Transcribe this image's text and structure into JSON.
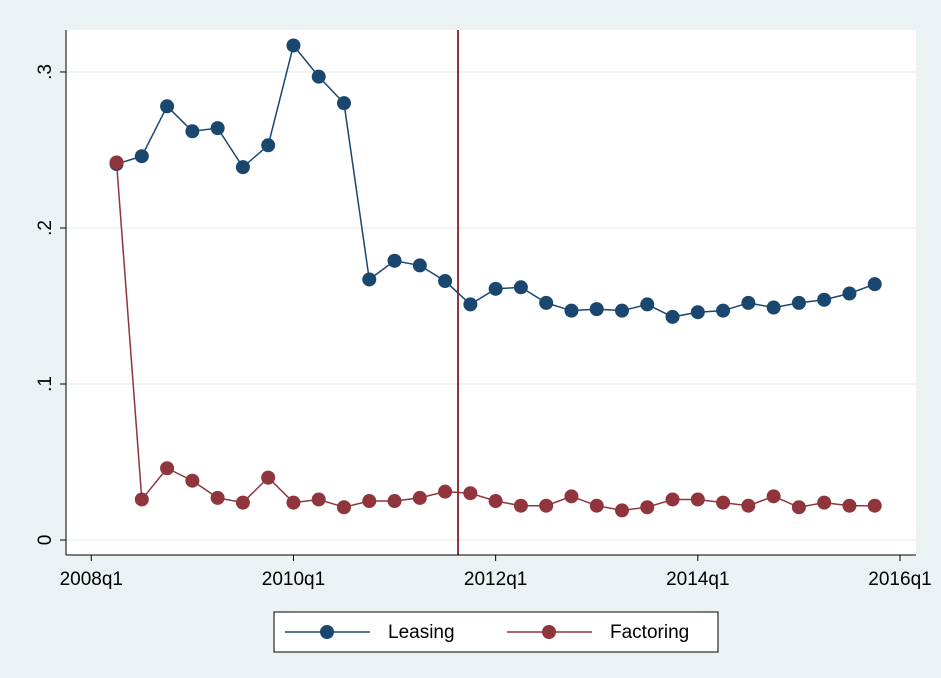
{
  "chart_data": {
    "type": "line",
    "x": [
      "2008q2",
      "2008q3",
      "2008q4",
      "2009q1",
      "2009q2",
      "2009q3",
      "2009q4",
      "2010q1",
      "2010q2",
      "2010q3",
      "2010q4",
      "2011q1",
      "2011q2",
      "2011q3",
      "2011q4",
      "2012q1",
      "2012q2",
      "2012q3",
      "2012q4",
      "2013q1",
      "2013q2",
      "2013q3",
      "2013q4",
      "2014q1",
      "2014q2",
      "2014q3",
      "2014q4",
      "2015q1",
      "2015q2",
      "2015q3",
      "2015q4"
    ],
    "series": [
      {
        "name": "Leasing",
        "color": "#1a476f",
        "values": [
          0.241,
          0.246,
          0.278,
          0.262,
          0.264,
          0.239,
          0.253,
          0.317,
          0.297,
          0.28,
          0.167,
          0.179,
          0.176,
          0.166,
          0.151,
          0.161,
          0.162,
          0.152,
          0.147,
          0.148,
          0.147,
          0.151,
          0.143,
          0.146,
          0.147,
          0.152,
          0.149,
          0.152,
          0.154,
          0.158,
          0.164
        ]
      },
      {
        "name": "Factoring",
        "color": "#90353b",
        "values": [
          0.242,
          0.026,
          0.046,
          0.038,
          0.027,
          0.024,
          0.04,
          0.024,
          0.026,
          0.021,
          0.025,
          0.025,
          0.027,
          0.031,
          0.03,
          0.025,
          0.022,
          0.022,
          0.028,
          0.022,
          0.019,
          0.021,
          0.026,
          0.026,
          0.024,
          0.022,
          0.028,
          0.021,
          0.024,
          0.022,
          0.022
        ]
      }
    ],
    "xlim": [
      "2007q4",
      "2016q1"
    ],
    "xticks": [
      "2008q1",
      "2010q1",
      "2012q1",
      "2014q1",
      "2016q1"
    ],
    "ylim": [
      -0.0096,
      0.3269
    ],
    "yticks": [
      {
        "value": 0,
        "label": "0"
      },
      {
        "value": 0.1,
        "label": ".1"
      },
      {
        "value": 0.2,
        "label": ".2"
      },
      {
        "value": 0.3,
        "label": ".3"
      }
    ],
    "grid": true
  }
}
